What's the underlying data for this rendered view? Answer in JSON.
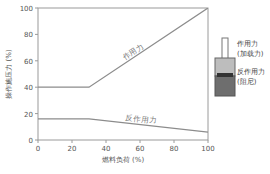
{
  "chart_data": {
    "type": "line",
    "x_label": "燃料负荷 (%)",
    "y_label": "操作施压力 (%)",
    "x": [
      0,
      30,
      100
    ],
    "series": [
      {
        "name": "作用力",
        "color": "#8c8c8c",
        "values": [
          40,
          40,
          100
        ]
      },
      {
        "name": "反作用力",
        "color": "#8c8c8c",
        "values": [
          16,
          16,
          6
        ]
      }
    ],
    "xlim": [
      0,
      100
    ],
    "xticks": [
      0,
      20,
      40,
      60,
      80,
      100
    ],
    "ylim": [
      0,
      100
    ],
    "yticks": [
      0,
      20,
      40,
      60,
      80,
      100
    ],
    "grid": false,
    "annotations": [
      [
        "作用力",
        "(加载力)"
      ],
      [
        "反作用力",
        "(阻尼)"
      ]
    ]
  }
}
